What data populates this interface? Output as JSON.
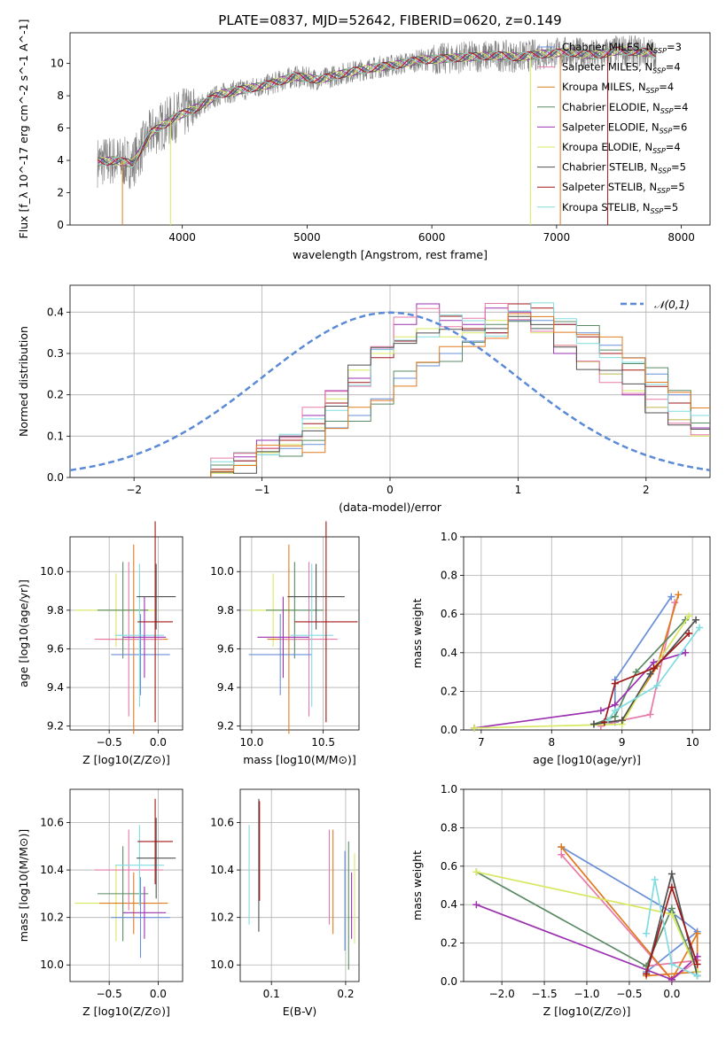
{
  "figure": {
    "title": "PLATE=0837, MJD=52642, FIBERID=0620, z=0.149"
  },
  "colors": {
    "Chabrier MILES": "#6a8fd8",
    "Salpeter MILES": "#e87aa8",
    "Kroupa MILES": "#e07b20",
    "Chabrier ELODIE": "#5a8a64",
    "Salpeter ELODIE": "#9b30b0",
    "Kroupa ELODIE": "#d7e860",
    "Chabrier STELIB": "#505050",
    "Salpeter STELIB": "#a01818",
    "Kroupa STELIB": "#80dce0",
    "data": "#808080",
    "normal": "#5b8ad6"
  },
  "chart_data": [
    {
      "id": "spectrum",
      "type": "line",
      "title": "PLATE=0837, MJD=52642, FIBERID=0620, z=0.149",
      "xlabel": "wavelength [Angstrom, rest frame]",
      "ylabel": "Flux [f_λ 10^-17 erg cm^-2 s^-1 A^-1]",
      "xlim": [
        3100,
        8230
      ],
      "ylim": [
        0,
        11.9
      ],
      "xticks": [
        4000,
        5000,
        6000,
        7000,
        8000
      ],
      "yticks": [
        0,
        2,
        4,
        6,
        8,
        10
      ],
      "grid": false,
      "legend": "upper right",
      "legend_labels": [
        "Chabrier MILES, N_SSP=3",
        "Salpeter MILES, N_SSP=4",
        "Kroupa MILES, N_SSP=4",
        "Chabrier ELODIE, N_SSP=4",
        "Salpeter ELODIE, N_SSP=6",
        "Kroupa ELODIE, N_SSP=4",
        "Chabrier STELIB, N_SSP=5",
        "Salpeter STELIB, N_SSP=5",
        "Kroupa STELIB, N_SSP=5"
      ],
      "model_curve": {
        "x": [
          3320,
          3450,
          3600,
          3750,
          3950,
          4100,
          4300,
          4500,
          4700,
          4900,
          5100,
          5300,
          5500,
          5700,
          5900,
          6100,
          6300,
          6500,
          6700,
          6900,
          7100,
          7300,
          7500,
          7700,
          7800
        ],
        "y": [
          3.9,
          4.0,
          3.8,
          5.7,
          6.7,
          7.2,
          8.1,
          8.4,
          8.7,
          9.2,
          9.0,
          9.4,
          9.7,
          9.9,
          10.2,
          10.3,
          10.4,
          10.5,
          10.4,
          10.6,
          10.7,
          10.5,
          10.8,
          10.7,
          10.6
        ]
      }
    },
    {
      "id": "residuals",
      "type": "histogram",
      "xlabel": "(data-model)/error",
      "ylabel": "Normed distribution",
      "xlim": [
        -2.5,
        2.5
      ],
      "ylim": [
        0,
        0.465
      ],
      "xticks": [
        -2,
        -1,
        0,
        1,
        2
      ],
      "yticks": [
        0.0,
        0.1,
        0.2,
        0.3,
        0.4
      ],
      "grid": true,
      "legend": "upper right",
      "legend_labels": [
        "𝒩(0,1)"
      ],
      "bin_width": 0.1,
      "series": [
        {
          "key": "Chabrier MILES",
          "values": [
            0.03,
            0.04,
            0.06,
            0.07,
            0.08,
            0.12,
            0.15,
            0.19,
            0.24,
            0.27,
            0.3,
            0.33,
            0.35,
            0.38,
            0.38,
            0.37,
            0.35,
            0.32,
            0.29,
            0.25,
            0.2,
            0.15,
            0.12,
            0.1,
            0.08,
            0.06,
            0.04,
            0.03
          ]
        },
        {
          "key": "Salpeter ELODIE",
          "values": [
            0.03,
            0.05,
            0.09,
            0.1,
            0.15,
            0.21,
            0.24,
            0.31,
            0.37,
            0.42,
            0.38,
            0.37,
            0.41,
            0.4,
            0.36,
            0.3,
            0.28,
            0.25,
            0.2,
            0.17,
            0.14,
            0.12,
            0.1,
            0.07,
            0.05,
            0.04,
            0.03,
            0.02
          ]
        },
        {
          "key": "Salpeter STELIB",
          "values": [
            0.02,
            0.04,
            0.07,
            0.09,
            0.13,
            0.18,
            0.23,
            0.29,
            0.33,
            0.36,
            0.39,
            0.36,
            0.35,
            0.42,
            0.41,
            0.37,
            0.34,
            0.3,
            0.26,
            0.22,
            0.18,
            0.15,
            0.12,
            0.09,
            0.07,
            0.05,
            0.03,
            0.02
          ]
        },
        {
          "key": "Kroupa ELODIE",
          "values": [
            0.01,
            0.03,
            0.06,
            0.08,
            0.12,
            0.19,
            0.26,
            0.3,
            0.34,
            0.36,
            0.34,
            0.35,
            0.38,
            0.39,
            0.35,
            0.32,
            0.28,
            0.25,
            0.21,
            0.17,
            0.14,
            0.1,
            0.07,
            0.05,
            0.03,
            0.02,
            0.01,
            0.01
          ]
        }
      ],
      "normal_pdf": {
        "mean": 0,
        "sd": 1
      }
    },
    {
      "id": "age-vs-Z",
      "type": "errorbar",
      "xlabel": "Z [log10(Z/Z⊙)]",
      "ylabel": "age [log10(age/yr)]",
      "xlim": [
        -0.9,
        0.25
      ],
      "ylim": [
        9.18,
        10.18
      ],
      "xticks": [
        -0.5,
        0.0
      ],
      "yticks": [
        9.2,
        9.4,
        9.6,
        9.8,
        10.0
      ],
      "grid": true,
      "points": [
        {
          "key": "Kroupa ELODIE",
          "x": -0.43,
          "xerr": 0.42,
          "y": 9.8,
          "yerr": 0.19
        },
        {
          "key": "Kroupa MILES",
          "x": -0.25,
          "xerr": 0.35,
          "y": 9.65,
          "yerr": 0.49
        },
        {
          "key": "Salpeter MILES",
          "x": -0.3,
          "xerr": 0.35,
          "y": 9.65,
          "yerr": 0.4
        },
        {
          "key": "Chabrier ELODIE",
          "x": -0.36,
          "xerr": 0.26,
          "y": 9.8,
          "yerr": 0.25
        },
        {
          "key": "Chabrier MILES",
          "x": -0.18,
          "xerr": 0.3,
          "y": 9.57,
          "yerr": 0.21
        },
        {
          "key": "Kroupa STELIB",
          "x": -0.19,
          "xerr": 0.25,
          "y": 9.67,
          "yerr": 0.37
        },
        {
          "key": "Salpeter ELODIE",
          "x": -0.14,
          "xerr": 0.22,
          "y": 9.66,
          "yerr": 0.21
        },
        {
          "key": "Chabrier STELIB",
          "x": -0.02,
          "xerr": 0.2,
          "y": 9.87,
          "yerr": 0.17
        },
        {
          "key": "Salpeter STELIB",
          "x": -0.03,
          "xerr": 0.18,
          "y": 9.74,
          "yerr": 0.52
        }
      ]
    },
    {
      "id": "age-vs-mass",
      "type": "errorbar",
      "xlabel": "mass [log10(M/M⊙)]",
      "ylabel": "",
      "xlim": [
        9.92,
        10.75
      ],
      "ylim": [
        9.18,
        10.18
      ],
      "xticks": [
        10.0,
        10.5
      ],
      "yticks": [
        9.2,
        9.4,
        9.6,
        9.8,
        10.0
      ],
      "grid": true,
      "points": [
        {
          "key": "Kroupa ELODIE",
          "x": 10.15,
          "xerr": 0.17,
          "y": 9.8,
          "yerr": 0.19
        },
        {
          "key": "Kroupa MILES",
          "x": 10.26,
          "xerr": 0.15,
          "y": 9.65,
          "yerr": 0.49
        },
        {
          "key": "Salpeter MILES",
          "x": 10.4,
          "xerr": 0.2,
          "y": 9.65,
          "yerr": 0.4
        },
        {
          "key": "Chabrier ELODIE",
          "x": 10.3,
          "xerr": 0.2,
          "y": 9.8,
          "yerr": 0.25
        },
        {
          "key": "Chabrier MILES",
          "x": 10.2,
          "xerr": 0.22,
          "y": 9.57,
          "yerr": 0.21
        },
        {
          "key": "Kroupa STELIB",
          "x": 10.42,
          "xerr": 0.15,
          "y": 9.67,
          "yerr": 0.37
        },
        {
          "key": "Salpeter ELODIE",
          "x": 10.22,
          "xerr": 0.18,
          "y": 9.66,
          "yerr": 0.21
        },
        {
          "key": "Chabrier STELIB",
          "x": 10.45,
          "xerr": 0.2,
          "y": 9.87,
          "yerr": 0.17
        },
        {
          "key": "Salpeter STELIB",
          "x": 10.52,
          "xerr": 0.22,
          "y": 9.74,
          "yerr": 0.52
        }
      ]
    },
    {
      "id": "mass-weight-vs-age",
      "type": "line",
      "xlabel": "age [log10(age/yr)]",
      "ylabel": "mass weight",
      "xlim": [
        6.75,
        10.25
      ],
      "ylim": [
        0.0,
        1.0
      ],
      "xticks": [
        7,
        8,
        9,
        10
      ],
      "yticks": [
        0.0,
        0.2,
        0.4,
        0.6,
        0.8,
        1.0
      ],
      "grid": true,
      "series": [
        {
          "key": "Chabrier MILES",
          "x": [
            8.9,
            8.9,
            9.7
          ],
          "y": [
            0.04,
            0.26,
            0.69
          ]
        },
        {
          "key": "Salpeter MILES",
          "x": [
            8.7,
            9.0,
            9.4,
            9.75
          ],
          "y": [
            0.02,
            0.05,
            0.08,
            0.66
          ]
        },
        {
          "key": "Kroupa MILES",
          "x": [
            8.75,
            9.0,
            9.5,
            9.8
          ],
          "y": [
            0.04,
            0.05,
            0.33,
            0.7
          ]
        },
        {
          "key": "Chabrier ELODIE",
          "x": [
            8.6,
            8.9,
            9.2,
            9.9
          ],
          "y": [
            0.03,
            0.07,
            0.3,
            0.57
          ]
        },
        {
          "key": "Salpeter ELODIE",
          "x": [
            6.9,
            8.7,
            8.9,
            9.45,
            9.9
          ],
          "y": [
            0.01,
            0.1,
            0.13,
            0.35,
            0.4
          ]
        },
        {
          "key": "Kroupa ELODIE",
          "x": [
            6.9,
            9.0,
            9.45,
            9.95
          ],
          "y": [
            0.01,
            0.03,
            0.32,
            0.59
          ]
        },
        {
          "key": "Chabrier STELIB",
          "x": [
            8.6,
            9.0,
            9.4,
            10.05
          ],
          "y": [
            0.03,
            0.05,
            0.29,
            0.57
          ]
        },
        {
          "key": "Salpeter STELIB",
          "x": [
            8.75,
            8.9,
            9.45,
            9.95
          ],
          "y": [
            0.04,
            0.24,
            0.32,
            0.5
          ]
        },
        {
          "key": "Kroupa STELIB",
          "x": [
            8.8,
            8.9,
            9.5,
            10.1
          ],
          "y": [
            0.05,
            0.1,
            0.23,
            0.53
          ]
        }
      ]
    },
    {
      "id": "mass-vs-Z",
      "type": "errorbar",
      "xlabel": "Z [log10(Z/Z⊙)]",
      "ylabel": "mass [log10(M/M⊙)]",
      "xlim": [
        -0.9,
        0.25
      ],
      "ylim": [
        9.93,
        10.74
      ],
      "xticks": [
        -0.5,
        0.0
      ],
      "yticks": [
        10.0,
        10.2,
        10.4,
        10.6
      ],
      "grid": true,
      "points": [
        {
          "key": "Kroupa ELODIE",
          "x": -0.43,
          "xerr": 0.42,
          "y": 10.26,
          "yerr": 0.16
        },
        {
          "key": "Kroupa MILES",
          "x": -0.25,
          "xerr": 0.35,
          "y": 10.26,
          "yerr": 0.13
        },
        {
          "key": "Salpeter MILES",
          "x": -0.3,
          "xerr": 0.35,
          "y": 10.4,
          "yerr": 0.17
        },
        {
          "key": "Chabrier ELODIE",
          "x": -0.36,
          "xerr": 0.26,
          "y": 10.3,
          "yerr": 0.2
        },
        {
          "key": "Chabrier MILES",
          "x": -0.18,
          "xerr": 0.3,
          "y": 10.2,
          "yerr": 0.17
        },
        {
          "key": "Kroupa STELIB",
          "x": -0.19,
          "xerr": 0.25,
          "y": 10.42,
          "yerr": 0.17
        },
        {
          "key": "Salpeter ELODIE",
          "x": -0.14,
          "xerr": 0.22,
          "y": 10.22,
          "yerr": 0.11
        },
        {
          "key": "Chabrier STELIB",
          "x": -0.02,
          "xerr": 0.2,
          "y": 10.45,
          "yerr": 0.17
        },
        {
          "key": "Salpeter STELIB",
          "x": -0.03,
          "xerr": 0.18,
          "y": 10.52,
          "yerr": 0.18
        }
      ]
    },
    {
      "id": "mass-vs-EBV",
      "type": "errorbar",
      "xlabel": "E(B-V)",
      "ylabel": "",
      "xlim": [
        0.058,
        0.218
      ],
      "ylim": [
        9.93,
        10.74
      ],
      "xticks": [
        0.1,
        0.2
      ],
      "yticks": [
        10.0,
        10.2,
        10.4,
        10.6
      ],
      "grid": true,
      "points": [
        {
          "key": "Kroupa STELIB",
          "x": 0.07,
          "y": 10.38,
          "yerr": 0.21
        },
        {
          "key": "Chabrier STELIB",
          "x": 0.083,
          "y": 10.42,
          "yerr": 0.28
        },
        {
          "key": "Salpeter STELIB",
          "x": 0.084,
          "y": 10.48,
          "yerr": 0.21
        },
        {
          "key": "Salpeter MILES",
          "x": 0.178,
          "y": 10.37,
          "yerr": 0.2
        },
        {
          "key": "Kroupa MILES",
          "x": 0.183,
          "y": 10.35,
          "yerr": 0.22
        },
        {
          "key": "Chabrier MILES",
          "x": 0.199,
          "y": 10.27,
          "yerr": 0.21
        },
        {
          "key": "Chabrier ELODIE",
          "x": 0.204,
          "y": 10.25,
          "yerr": 0.27
        },
        {
          "key": "Salpeter ELODIE",
          "x": 0.208,
          "y": 10.25,
          "yerr": 0.14
        },
        {
          "key": "Kroupa ELODIE",
          "x": 0.212,
          "y": 10.28,
          "yerr": 0.19
        }
      ]
    },
    {
      "id": "mass-weight-vs-Z",
      "type": "line",
      "xlabel": "Z [log10(Z/Z⊙)]",
      "ylabel": "mass weight",
      "xlim": [
        -2.45,
        0.45
      ],
      "ylim": [
        0.0,
        1.0
      ],
      "xticks": [
        -2.0,
        -1.5,
        -1.0,
        -0.5,
        0.0
      ],
      "yticks": [
        0.0,
        0.2,
        0.4,
        0.6,
        0.8,
        1.0
      ],
      "grid": true,
      "series": [
        {
          "key": "Chabrier MILES",
          "x": [
            -1.3,
            0.0,
            0.3,
            -0.3
          ],
          "y": [
            0.7,
            0.36,
            0.26,
            0.05
          ]
        },
        {
          "key": "Salpeter MILES",
          "x": [
            -1.3,
            0.0,
            0.3,
            -0.3
          ],
          "y": [
            0.66,
            0.01,
            0.11,
            0.08
          ]
        },
        {
          "key": "Kroupa MILES",
          "x": [
            -1.3,
            0.0,
            0.3,
            0.3,
            -0.3
          ],
          "y": [
            0.7,
            0.01,
            0.25,
            0.05,
            0.03
          ]
        },
        {
          "key": "Chabrier ELODIE",
          "x": [
            -2.3,
            -0.3,
            0.0,
            0.3
          ],
          "y": [
            0.57,
            0.08,
            0.38,
            0.05
          ]
        },
        {
          "key": "Salpeter ELODIE",
          "x": [
            -2.3,
            0.0,
            0.3
          ],
          "y": [
            0.4,
            0.01,
            0.13
          ]
        },
        {
          "key": "Kroupa ELODIE",
          "x": [
            -2.3,
            0.0,
            0.3
          ],
          "y": [
            0.57,
            0.35,
            0.05
          ]
        },
        {
          "key": "Chabrier STELIB",
          "x": [
            -0.3,
            0.0,
            0.3
          ],
          "y": [
            0.04,
            0.56,
            0.03
          ]
        },
        {
          "key": "Salpeter STELIB",
          "x": [
            -0.3,
            0.0,
            0.3
          ],
          "y": [
            0.04,
            0.49,
            0.09
          ]
        },
        {
          "key": "Kroupa STELIB",
          "x": [
            -0.3,
            -0.2,
            0.0,
            0.3
          ],
          "y": [
            0.25,
            0.53,
            0.09,
            0.03
          ]
        }
      ]
    }
  ]
}
